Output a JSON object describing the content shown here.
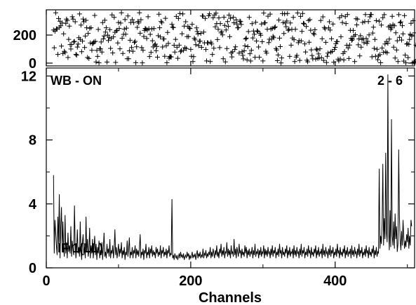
{
  "chart_data": [
    {
      "type": "scatter",
      "panel": "phase",
      "x_range": [
        0,
        510
      ],
      "ylim": [
        0,
        360
      ],
      "yticks": [
        0,
        200
      ],
      "marker": "+",
      "points_note": "",
      "x": [],
      "y": []
    },
    {
      "type": "line",
      "panel": "amplitude",
      "annotations": {
        "left": "WB - ON",
        "right": "2 - 6",
        "bottom": "IF 1(LL)"
      },
      "xlabel": "Channels",
      "xlim": [
        0,
        510
      ],
      "ylim": [
        0,
        12.5
      ],
      "xticks": [
        0,
        200,
        400
      ],
      "yticks": [
        0,
        4,
        8,
        12
      ],
      "series": [
        {
          "x_start": 10,
          "x_step": 1,
          "values": [
            5.8,
            0.9,
            3.0,
            2.2,
            1.4,
            0.8,
            3.2,
            1.5,
            4.6,
            0.6,
            2.6,
            3.8,
            1.1,
            2.9,
            1.2,
            0.7,
            3.3,
            0.9,
            1.6,
            0.6,
            2.2,
            1.0,
            1.4,
            0.9,
            2.6,
            0.7,
            1.7,
            1.1,
            0.8,
            3.9,
            1.5,
            0.6,
            1.2,
            2.4,
            0.9,
            1.3,
            0.7,
            2.9,
            1.0,
            0.5,
            1.6,
            2.1,
            0.8,
            1.3,
            0.6,
            3.2,
            1.0,
            1.8,
            0.7,
            1.1,
            2.5,
            0.6,
            1.4,
            0.9,
            1.8,
            0.6,
            1.2,
            2.0,
            0.8,
            1.5,
            0.5,
            1.3,
            0.9,
            1.7,
            0.6,
            1.1,
            0.8,
            1.6,
            0.5,
            1.3,
            2.2,
            0.7,
            1.0,
            0.6,
            1.5,
            0.9,
            1.2,
            0.7,
            1.8,
            0.6,
            1.1,
            0.9,
            1.4,
            0.6,
            1.2,
            2.4,
            0.8,
            1.3,
            0.6,
            1.0,
            1.5,
            0.7,
            1.2,
            0.9,
            1.6,
            0.6,
            1.1,
            0.8,
            1.3,
            0.5,
            1.0,
            0.8,
            1.7,
            0.7,
            1.2,
            1.9,
            0.6,
            1.0,
            0.8,
            1.3,
            0.6,
            1.1,
            0.9,
            1.4,
            0.6,
            1.2,
            0.8,
            1.1,
            0.7,
            1.3,
            2.1,
            0.6,
            1.0,
            0.8,
            1.2,
            0.5,
            1.1,
            0.9,
            1.5,
            0.6,
            1.0,
            0.8,
            1.3,
            0.6,
            1.2,
            0.9,
            1.4,
            0.7,
            1.1,
            0.8,
            1.0,
            0.6,
            1.3,
            0.9,
            1.2,
            0.7,
            1.0,
            0.8,
            1.4,
            0.6,
            1.1,
            0.9,
            1.3,
            0.7,
            1.0,
            0.8,
            1.2,
            0.6,
            1.1,
            0.9,
            1.4,
            0.7,
            0.9,
            0.8,
            4.3,
            0.6,
            0.8,
            0.5,
            0.9,
            0.7,
            0.6,
            0.8,
            0.5,
            0.7,
            0.9,
            0.6,
            1.0,
            0.7,
            0.8,
            0.6,
            0.9,
            0.5,
            0.7,
            0.8,
            0.6,
            1.0,
            0.7,
            0.9,
            0.5,
            0.8,
            0.6,
            0.7,
            1.0,
            0.6,
            0.8,
            0.7,
            0.9,
            0.5,
            0.8,
            1.1,
            0.6,
            0.9,
            0.7,
            1.0,
            0.6,
            0.8,
            0.7,
            1.2,
            0.6,
            0.9,
            0.8,
            1.1,
            0.6,
            0.9,
            0.7,
            1.0,
            0.8,
            1.3,
            0.6,
            1.0,
            0.7,
            1.2,
            0.9,
            0.6,
            1.1,
            0.8,
            1.4,
            0.7,
            1.0,
            0.6,
            1.2,
            0.9,
            1.5,
            0.7,
            1.1,
            0.8,
            1.3,
            0.6,
            1.0,
            0.9,
            1.6,
            0.7,
            1.2,
            0.8,
            1.1,
            0.6,
            1.4,
            0.9,
            1.0,
            0.7,
            1.8,
            0.8,
            1.2,
            0.6,
            1.3,
            1.0,
            0.7,
            1.5,
            0.9,
            1.1,
            0.6,
            1.2,
            0.8,
            1.0,
            0.7,
            1.4,
            0.9,
            1.3,
            0.6,
            1.1,
            0.8,
            1.2,
            0.7,
            1.0,
            0.9,
            1.3,
            0.6,
            1.1,
            0.8,
            1.5,
            0.7,
            1.0,
            0.9,
            1.2,
            0.6,
            1.1,
            0.8,
            1.3,
            0.7,
            1.0,
            0.9,
            1.4,
            0.6,
            1.2,
            0.8,
            1.1,
            0.7,
            1.3,
            0.9,
            1.0,
            0.6,
            1.2,
            0.8,
            1.4,
            0.7,
            1.1,
            0.9,
            1.3,
            0.6,
            1.0,
            0.8,
            1.2,
            0.7,
            1.5,
            0.9,
            1.1,
            0.6,
            1.3,
            0.8,
            1.0,
            0.7,
            1.2,
            0.9,
            1.4,
            0.6,
            1.1,
            0.8,
            1.3,
            0.7,
            1.0,
            0.9,
            1.2,
            0.6,
            1.4,
            0.8,
            1.1,
            0.7,
            1.3,
            0.9,
            1.0,
            0.6,
            1.2,
            0.8,
            1.5,
            0.7,
            1.1,
            0.9,
            1.3,
            0.6,
            1.0,
            0.8,
            1.2,
            0.7,
            1.4,
            0.9,
            1.1,
            0.6,
            1.3,
            0.8,
            1.0,
            0.7,
            1.2,
            0.9,
            1.4,
            0.6,
            1.1,
            0.8,
            1.3,
            0.7,
            1.0,
            0.9,
            1.2,
            0.6,
            1.5,
            0.8,
            1.1,
            0.7,
            1.3,
            0.9,
            1.0,
            0.6,
            1.2,
            0.8,
            1.4,
            0.7,
            1.1,
            0.9,
            1.3,
            0.6,
            1.0,
            0.8,
            1.2,
            0.7,
            1.5,
            0.9,
            1.1,
            0.6,
            1.3,
            0.8,
            1.0,
            0.7,
            1.2,
            0.9,
            1.4,
            0.6,
            1.1,
            0.8,
            1.3,
            0.7,
            1.0,
            0.9,
            1.2,
            0.6,
            1.4,
            0.8,
            1.1,
            0.7,
            1.3,
            0.9,
            1.0,
            0.6,
            1.2,
            0.8,
            1.5,
            0.7,
            1.1,
            0.9,
            1.3,
            0.6,
            1.0,
            0.8,
            1.2,
            0.7,
            1.4,
            0.9,
            1.1,
            0.6,
            1.3,
            0.8,
            1.0,
            0.7,
            1.2,
            0.9,
            1.4,
            0.6,
            1.1,
            0.8,
            1.3,
            0.7,
            1.0,
            0.9,
            6.2,
            1.2,
            2.0,
            1.5,
            2.8,
            6.5,
            1.4,
            3.1,
            1.8,
            7.2,
            2.2,
            1.6,
            12.1,
            2.4,
            1.1,
            3.6,
            1.3,
            9.3,
            2.0,
            1.4,
            2.9,
            1.2,
            3.4,
            1.8,
            2.6,
            1.0,
            1.5,
            7.4,
            3.2,
            1.7,
            1.1,
            2.3,
            1.4,
            3.0,
            1.9,
            1.2,
            1.7,
            1.3,
            2.1,
            1.6,
            2.5,
            1.2,
            2.0,
            1.4,
            3.0,
            2.6
          ]
        }
      ]
    }
  ]
}
